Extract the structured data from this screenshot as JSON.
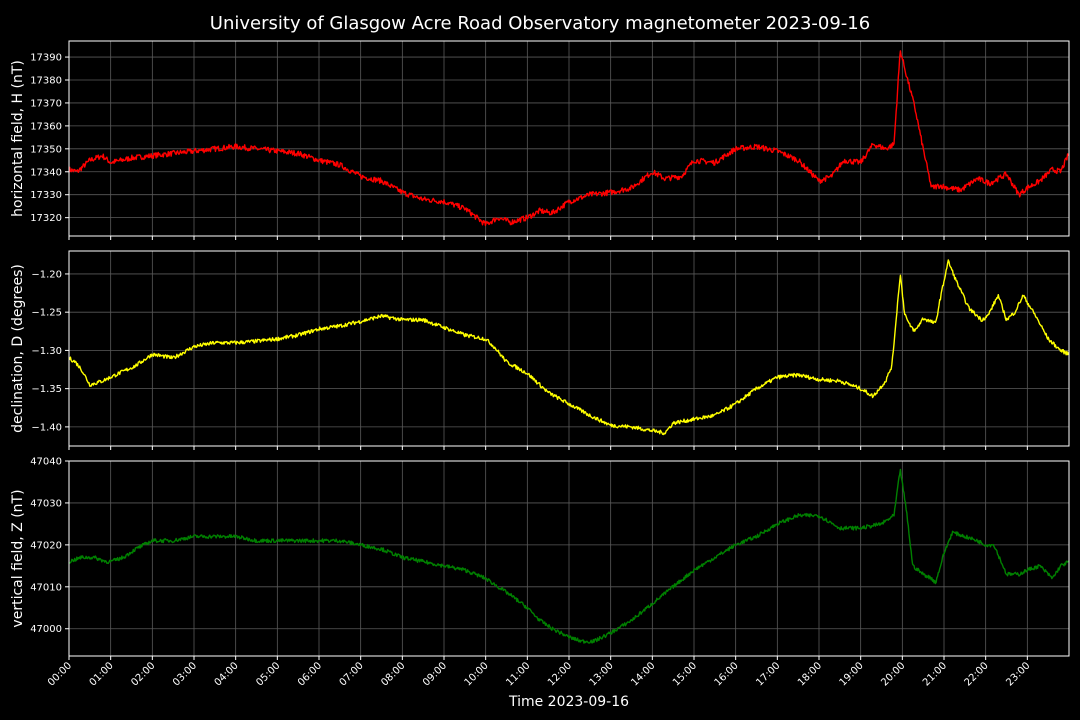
{
  "chart_data": {
    "type": "line",
    "title": "University of Glasgow Acre Road Observatory magnetometer 2023-09-16",
    "xlabel": "Time 2023-09-16",
    "x_unit": "hours",
    "x_tick_labels": [
      "00:00",
      "01:00",
      "02:00",
      "03:00",
      "04:00",
      "05:00",
      "06:00",
      "07:00",
      "08:00",
      "09:00",
      "10:00",
      "11:00",
      "12:00",
      "13:00",
      "14:00",
      "15:00",
      "16:00",
      "17:00",
      "18:00",
      "19:00",
      "20:00",
      "21:00",
      "22:00",
      "23:00"
    ],
    "xlim": [
      0,
      24
    ],
    "grid": true,
    "panels": [
      {
        "ylabel": "horizontal field, H (nT)",
        "color": "#ff0000",
        "ylim": [
          17312,
          17397
        ],
        "yticks": [
          17320,
          17330,
          17340,
          17350,
          17360,
          17370,
          17380,
          17390
        ],
        "ytick_labels": [
          "17320",
          "17330",
          "17340",
          "17350",
          "17360",
          "17370",
          "17380",
          "17390"
        ],
        "noise": 1.2,
        "x": [
          0,
          0.2,
          0.5,
          0.8,
          1.0,
          1.5,
          2.0,
          2.5,
          3.0,
          3.5,
          4.0,
          4.5,
          5.0,
          5.5,
          6.0,
          6.5,
          7.0,
          7.5,
          8.0,
          8.5,
          9.0,
          9.5,
          10.0,
          10.3,
          10.6,
          11.0,
          11.3,
          11.6,
          12.0,
          12.5,
          13.0,
          13.5,
          14.0,
          14.3,
          14.7,
          15.0,
          15.5,
          16.0,
          16.5,
          17.0,
          17.5,
          18.0,
          18.3,
          18.6,
          19.0,
          19.3,
          19.6,
          19.8,
          19.95,
          20.1,
          20.3,
          20.5,
          20.7,
          20.9,
          21.1,
          21.4,
          21.8,
          22.1,
          22.5,
          22.8,
          23.0,
          23.3,
          23.6,
          23.8,
          24.0
        ],
        "y": [
          17341,
          17340,
          17345,
          17347,
          17344,
          17346,
          17347,
          17348,
          17349,
          17350,
          17351,
          17350,
          17349,
          17348,
          17345,
          17343,
          17338,
          17336,
          17331,
          17328,
          17327,
          17324,
          17317,
          17320,
          17318,
          17320,
          17323,
          17322,
          17327,
          17330,
          17331,
          17333,
          17340,
          17337,
          17338,
          17345,
          17344,
          17350,
          17351,
          17349,
          17345,
          17336,
          17338,
          17345,
          17344,
          17352,
          17350,
          17352,
          17393,
          17382,
          17368,
          17350,
          17333,
          17334,
          17333,
          17332,
          17337,
          17335,
          17339,
          17330,
          17333,
          17336,
          17341,
          17340,
          17348
        ]
      },
      {
        "ylabel": "declination, D (degrees)",
        "color": "#ffff00",
        "ylim": [
          -1.425,
          -1.17
        ],
        "yticks": [
          -1.4,
          -1.35,
          -1.3,
          -1.25,
          -1.2
        ],
        "ytick_labels": [
          "−1.40",
          "−1.35",
          "−1.30",
          "−1.25",
          "−1.20"
        ],
        "noise": 0.0025,
        "x": [
          0,
          0.15,
          0.3,
          0.5,
          0.8,
          1.2,
          1.6,
          2.0,
          2.5,
          3.0,
          3.5,
          4.0,
          4.5,
          5.0,
          5.5,
          6.0,
          6.5,
          7.0,
          7.5,
          8.0,
          8.5,
          9.0,
          9.5,
          10.0,
          10.2,
          10.5,
          11.0,
          11.5,
          12.0,
          12.5,
          13.0,
          13.5,
          14.0,
          14.3,
          14.5,
          15.0,
          15.5,
          16.0,
          16.5,
          17.0,
          17.5,
          18.0,
          18.5,
          19.0,
          19.3,
          19.6,
          19.75,
          19.85,
          19.95,
          20.05,
          20.15,
          20.3,
          20.5,
          20.8,
          20.9,
          21.1,
          21.3,
          21.6,
          21.9,
          22.05,
          22.3,
          22.5,
          22.7,
          22.9,
          23.2,
          23.5,
          23.8,
          24.0
        ],
        "y": [
          -1.31,
          -1.315,
          -1.325,
          -1.345,
          -1.34,
          -1.33,
          -1.32,
          -1.305,
          -1.31,
          -1.295,
          -1.29,
          -1.29,
          -1.288,
          -1.285,
          -1.28,
          -1.272,
          -1.268,
          -1.262,
          -1.255,
          -1.26,
          -1.26,
          -1.27,
          -1.28,
          -1.285,
          -1.295,
          -1.315,
          -1.33,
          -1.355,
          -1.37,
          -1.385,
          -1.398,
          -1.4,
          -1.405,
          -1.408,
          -1.395,
          -1.39,
          -1.385,
          -1.37,
          -1.35,
          -1.335,
          -1.332,
          -1.338,
          -1.34,
          -1.35,
          -1.36,
          -1.34,
          -1.32,
          -1.26,
          -1.2,
          -1.25,
          -1.265,
          -1.275,
          -1.258,
          -1.265,
          -1.235,
          -1.183,
          -1.21,
          -1.245,
          -1.26,
          -1.255,
          -1.228,
          -1.26,
          -1.25,
          -1.228,
          -1.255,
          -1.285,
          -1.3,
          -1.305
        ]
      },
      {
        "ylabel": "vertical field, Z (nT)",
        "color": "#008000",
        "ylim": [
          46993.5,
          47040
        ],
        "yticks": [
          47000,
          47010,
          47020,
          47030,
          47040
        ],
        "ytick_labels": [
          "47000",
          "47010",
          "47020",
          "47030",
          "47040"
        ],
        "noise": 0.45,
        "x": [
          0,
          0.3,
          0.6,
          0.9,
          1.0,
          1.3,
          1.6,
          2.0,
          2.5,
          3.0,
          3.5,
          4.0,
          4.5,
          5.0,
          5.5,
          6.0,
          6.5,
          7.0,
          7.5,
          8.0,
          8.5,
          9.0,
          9.5,
          10.0,
          10.3,
          10.6,
          11.0,
          11.3,
          11.6,
          12.0,
          12.3,
          12.6,
          13.0,
          13.5,
          14.0,
          14.5,
          15.0,
          15.5,
          16.0,
          16.5,
          17.0,
          17.5,
          18.0,
          18.5,
          19.0,
          19.5,
          19.8,
          19.95,
          20.1,
          20.25,
          20.5,
          20.7,
          20.8,
          21.0,
          21.2,
          21.5,
          21.8,
          22.0,
          22.2,
          22.5,
          22.8,
          23.0,
          23.3,
          23.6,
          23.8,
          24.0
        ],
        "y": [
          47016,
          47017,
          47017,
          47016,
          47016,
          47017,
          47019,
          47021,
          47021,
          47022,
          47022,
          47022,
          47021,
          47021,
          47021,
          47021,
          47021,
          47020,
          47019,
          47017,
          47016,
          47015,
          47014,
          47012,
          47010,
          47008,
          47005,
          47002,
          47000,
          46998,
          46997,
          46997,
          46999,
          47002,
          47006,
          47010,
          47014,
          47017,
          47020,
          47022,
          47025,
          47027,
          47027,
          47024,
          47024,
          47025,
          47027,
          47038,
          47028,
          47015,
          47013,
          47012,
          47011,
          47018,
          47023,
          47022,
          47021,
          47020,
          47020,
          47013,
          47013,
          47014,
          47015,
          47012,
          47015,
          47016
        ]
      }
    ]
  }
}
